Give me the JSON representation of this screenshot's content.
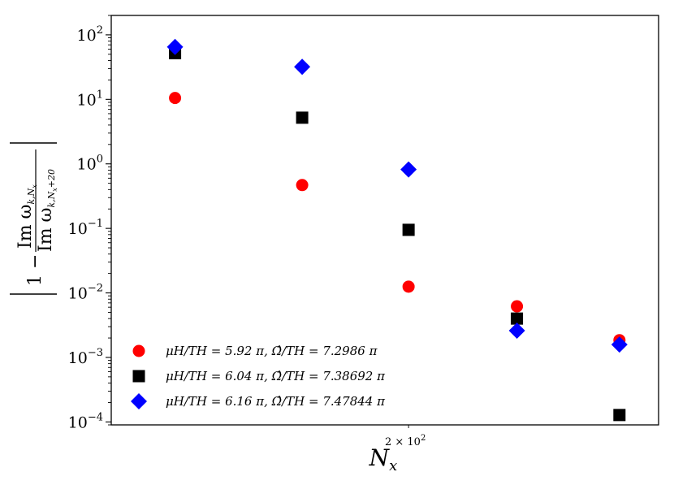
{
  "chart_data": {
    "type": "scatter",
    "title": "",
    "xlabel": "N_x",
    "ylabel": "|1 − Im ω_{k,N_x} / Im ω_{k,N_x+20}|",
    "xscale": "log",
    "yscale": "log",
    "xlim": [
      127,
      293
    ],
    "ylim": [
      9e-05,
      200
    ],
    "x_tick_labels": [
      {
        "x": 200,
        "label": "2 × 10",
        "exp": "2"
      }
    ],
    "y_ticks": [
      {
        "value": 0.0001,
        "base": "10",
        "exp": "−4"
      },
      {
        "value": 0.001,
        "base": "10",
        "exp": "−3"
      },
      {
        "value": 0.01,
        "base": "10",
        "exp": "−2"
      },
      {
        "value": 0.1,
        "base": "10",
        "exp": "−1"
      },
      {
        "value": 1,
        "base": "10",
        "exp": "0"
      },
      {
        "value": 10,
        "base": "10",
        "exp": "1"
      },
      {
        "value": 100,
        "base": "10",
        "exp": "2"
      }
    ],
    "grid": false,
    "legend_position": "lower-left",
    "series": [
      {
        "name": "μH/TH = 5.92 π, Ω̂/TH = 7.2986 π",
        "marker": "circle",
        "color": "#ff0000",
        "points": [
          {
            "x": 140,
            "y": 10.5
          },
          {
            "x": 170,
            "y": 0.47
          },
          {
            "x": 200,
            "y": 0.0125
          },
          {
            "x": 236,
            "y": 0.0062
          },
          {
            "x": 276,
            "y": 0.00185
          }
        ]
      },
      {
        "name": "μH/TH = 6.04 π, Ω̂/TH = 7.38692 π",
        "marker": "square",
        "color": "#000000",
        "points": [
          {
            "x": 140,
            "y": 52
          },
          {
            "x": 170,
            "y": 5.2
          },
          {
            "x": 200,
            "y": 0.095
          },
          {
            "x": 236,
            "y": 0.004
          },
          {
            "x": 276,
            "y": 0.000128
          }
        ]
      },
      {
        "name": "μH/TH = 6.16 π, Ω̂/TH = 7.47844 π",
        "marker": "diamond",
        "color": "#0000ff",
        "points": [
          {
            "x": 140,
            "y": 65
          },
          {
            "x": 170,
            "y": 32
          },
          {
            "x": 200,
            "y": 0.82
          },
          {
            "x": 236,
            "y": 0.0026
          },
          {
            "x": 276,
            "y": 0.00158
          }
        ]
      }
    ]
  }
}
